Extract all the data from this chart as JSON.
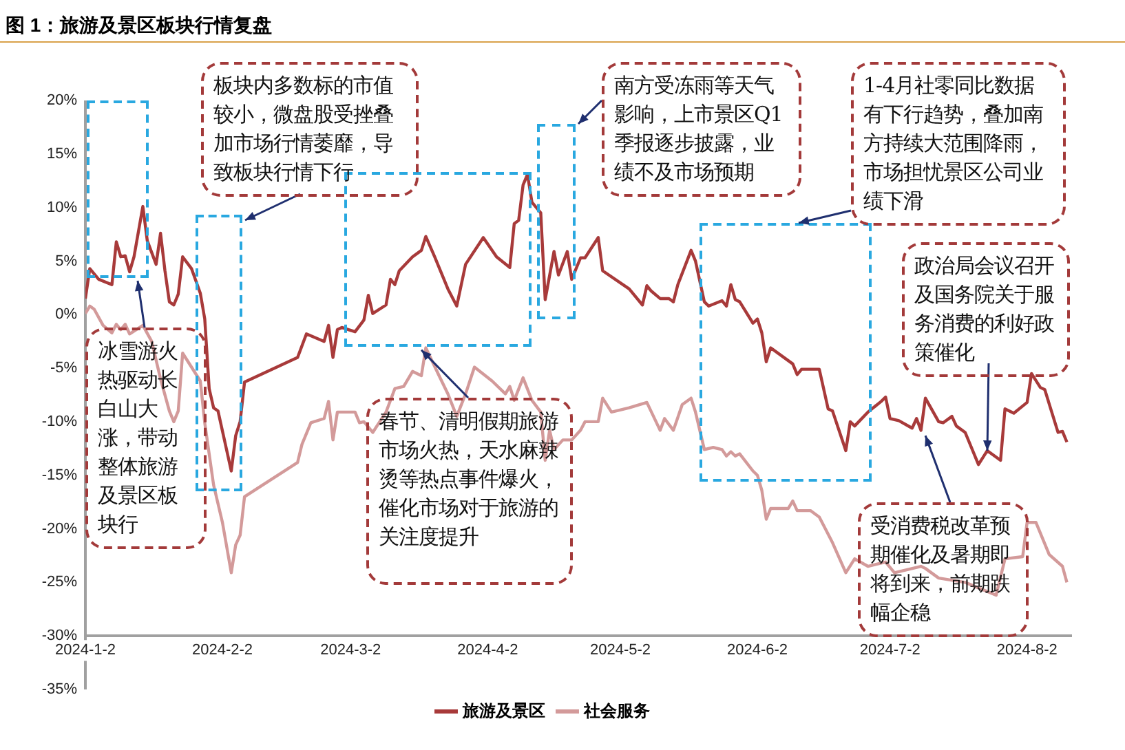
{
  "chart_data": {
    "type": "line",
    "title": "图 1：旅游及景区板块行情复盘",
    "xlim": [
      "2024-01-02",
      "2024-08-12"
    ],
    "xticks": [
      {
        "value": "2024-01-02",
        "label": "2024-1-2"
      },
      {
        "value": "2024-02-02",
        "label": "2024-2-2"
      },
      {
        "value": "2024-03-02",
        "label": "2024-3-2"
      },
      {
        "value": "2024-04-02",
        "label": "2024-4-2"
      },
      {
        "value": "2024-05-02",
        "label": "2024-5-2"
      },
      {
        "value": "2024-06-02",
        "label": "2024-6-2"
      },
      {
        "value": "2024-07-02",
        "label": "2024-7-2"
      },
      {
        "value": "2024-08-02",
        "label": "2024-8-2"
      }
    ],
    "ylim": [
      -35,
      20
    ],
    "yticks": [
      {
        "value": -35,
        "label": "-35%"
      },
      {
        "value": -30,
        "label": "-30%"
      },
      {
        "value": -25,
        "label": "-25%"
      },
      {
        "value": -20,
        "label": "-20%"
      },
      {
        "value": -15,
        "label": "-15%"
      },
      {
        "value": -10,
        "label": "-10%"
      },
      {
        "value": -5,
        "label": "-5%"
      },
      {
        "value": 0,
        "label": "0%"
      },
      {
        "value": 5,
        "label": "5%"
      },
      {
        "value": 10,
        "label": "10%"
      },
      {
        "value": 15,
        "label": "15%"
      },
      {
        "value": 20,
        "label": "20%"
      }
    ],
    "grid": false,
    "legend": "bottom",
    "marker": "none",
    "line_style": "solid",
    "series": [
      {
        "name": "旅游及景区",
        "color": "#a83a3a",
        "x": [
          "2024-01-02",
          "2024-01-03",
          "2024-01-05",
          "2024-01-08",
          "2024-01-09",
          "2024-01-10",
          "2024-01-11",
          "2024-01-12",
          "2024-01-13",
          "2024-01-15",
          "2024-01-16",
          "2024-01-18",
          "2024-01-19",
          "2024-01-20",
          "2024-01-21",
          "2024-01-22",
          "2024-01-23",
          "2024-01-24",
          "2024-01-26",
          "2024-01-28",
          "2024-01-29",
          "2024-01-30",
          "2024-01-31",
          "2024-02-01",
          "2024-02-04",
          "2024-02-05",
          "2024-02-06",
          "2024-02-07",
          "2024-02-19",
          "2024-02-21",
          "2024-02-25",
          "2024-02-26",
          "2024-02-27",
          "2024-02-28",
          "2024-02-29",
          "2024-03-03",
          "2024-03-05",
          "2024-03-06",
          "2024-03-07",
          "2024-03-10",
          "2024-03-11",
          "2024-03-12",
          "2024-03-13",
          "2024-03-16",
          "2024-03-18",
          "2024-03-19",
          "2024-03-21",
          "2024-03-24",
          "2024-03-26",
          "2024-03-28",
          "2024-04-01",
          "2024-04-04",
          "2024-04-07",
          "2024-04-08",
          "2024-04-09",
          "2024-04-10",
          "2024-04-11",
          "2024-04-12",
          "2024-04-14",
          "2024-04-15",
          "2024-04-17",
          "2024-04-18",
          "2024-04-20",
          "2024-04-21",
          "2024-04-23",
          "2024-04-24",
          "2024-04-27",
          "2024-04-28",
          "2024-05-04",
          "2024-05-07",
          "2024-05-08",
          "2024-05-09",
          "2024-05-11",
          "2024-05-13",
          "2024-05-14",
          "2024-05-15",
          "2024-05-18",
          "2024-05-19",
          "2024-05-21",
          "2024-05-22",
          "2024-05-25",
          "2024-05-26",
          "2024-05-27",
          "2024-05-28",
          "2024-05-29",
          "2024-06-01",
          "2024-06-02",
          "2024-06-03",
          "2024-06-04",
          "2024-06-05",
          "2024-06-10",
          "2024-06-11",
          "2024-06-12",
          "2024-06-16",
          "2024-06-18",
          "2024-06-19",
          "2024-06-22",
          "2024-06-23",
          "2024-06-24",
          "2024-06-27",
          "2024-06-30",
          "2024-07-01",
          "2024-07-02",
          "2024-07-04",
          "2024-07-07",
          "2024-07-08",
          "2024-07-09",
          "2024-07-10",
          "2024-07-13",
          "2024-07-14",
          "2024-07-16",
          "2024-07-17",
          "2024-07-19",
          "2024-07-22",
          "2024-07-24",
          "2024-07-27",
          "2024-07-28",
          "2024-07-30",
          "2024-08-02",
          "2024-08-03",
          "2024-08-05",
          "2024-08-06",
          "2024-08-09",
          "2024-08-10",
          "2024-08-11"
        ],
        "values": [
          1.5,
          4.3,
          3.3,
          2.8,
          6.8,
          5.4,
          5.5,
          4.0,
          5.4,
          10.1,
          6.9,
          4.7,
          7.6,
          4.1,
          1.2,
          0.9,
          1.9,
          5.4,
          4.3,
          2.0,
          -0.4,
          -6.9,
          -8.7,
          -9.0,
          -14.6,
          -11.3,
          -10.0,
          -6.3,
          -4.0,
          -1.8,
          -2.5,
          -1.0,
          -4.0,
          -1.4,
          -1.2,
          -1.6,
          -0.5,
          1.8,
          0.1,
          0.9,
          3.3,
          2.8,
          4.1,
          5.4,
          6.0,
          7.3,
          5.4,
          2.4,
          0.8,
          4.7,
          7.2,
          5.4,
          4.4,
          8.5,
          8.8,
          12.1,
          13.1,
          10.5,
          9.5,
          1.4,
          5.9,
          3.7,
          5.9,
          3.3,
          5.3,
          5.3,
          7.2,
          4.1,
          2.4,
          0.9,
          2.7,
          2.2,
          1.5,
          1.5,
          1.2,
          2.8,
          6.0,
          5.0,
          1.2,
          0.8,
          1.3,
          0.8,
          2.8,
          1.4,
          1.2,
          -0.8,
          -0.4,
          -1.7,
          -4.4,
          -3.1,
          -4.6,
          -5.6,
          -5.1,
          -5.1,
          -8.8,
          -9.0,
          -12.7,
          -10.0,
          -10.4,
          -9.1,
          -8.1,
          -7.7,
          -9.7,
          -9.9,
          -10.6,
          -9.7,
          -10.8,
          -7.8,
          -10.0,
          -10.1,
          -9.5,
          -10.4,
          -11.0,
          -14.0,
          -12.7,
          -13.6,
          -8.8,
          -9.2,
          -8.2,
          -5.5,
          -6.8,
          -7.0,
          -11.0,
          -10.9,
          -11.9
        ]
      },
      {
        "name": "社会服务",
        "color": "#d39a9a",
        "x": [
          "2024-01-02",
          "2024-01-03",
          "2024-01-04",
          "2024-01-06",
          "2024-01-08",
          "2024-01-09",
          "2024-01-10",
          "2024-01-11",
          "2024-01-12",
          "2024-01-15",
          "2024-01-17",
          "2024-01-19",
          "2024-01-21",
          "2024-01-22",
          "2024-01-23",
          "2024-01-24",
          "2024-01-26",
          "2024-01-28",
          "2024-01-29",
          "2024-01-31",
          "2024-02-02",
          "2024-02-04",
          "2024-02-05",
          "2024-02-06",
          "2024-02-07",
          "2024-02-19",
          "2024-02-20",
          "2024-02-22",
          "2024-02-25",
          "2024-02-26",
          "2024-02-27",
          "2024-02-28",
          "2024-03-03",
          "2024-03-04",
          "2024-03-05",
          "2024-03-07",
          "2024-03-10",
          "2024-03-12",
          "2024-03-14",
          "2024-03-16",
          "2024-03-18",
          "2024-03-19",
          "2024-03-22",
          "2024-03-24",
          "2024-03-26",
          "2024-03-28",
          "2024-03-30",
          "2024-04-03",
          "2024-04-06",
          "2024-04-07",
          "2024-04-08",
          "2024-04-10",
          "2024-04-12",
          "2024-04-14",
          "2024-04-15",
          "2024-04-16",
          "2024-04-17",
          "2024-04-19",
          "2024-04-21",
          "2024-04-23",
          "2024-04-24",
          "2024-04-27",
          "2024-04-28",
          "2024-04-30",
          "2024-05-04",
          "2024-05-08",
          "2024-05-11",
          "2024-05-12",
          "2024-05-14",
          "2024-05-16",
          "2024-05-18",
          "2024-05-19",
          "2024-05-21",
          "2024-05-23",
          "2024-05-25",
          "2024-05-26",
          "2024-05-27",
          "2024-05-28",
          "2024-05-29",
          "2024-06-01",
          "2024-06-02",
          "2024-06-03",
          "2024-06-04",
          "2024-06-05",
          "2024-06-09",
          "2024-06-10",
          "2024-06-11",
          "2024-06-14",
          "2024-06-16",
          "2024-06-19",
          "2024-06-22",
          "2024-06-24",
          "2024-06-27",
          "2024-06-29",
          "2024-07-01",
          "2024-07-03",
          "2024-07-09",
          "2024-07-10",
          "2024-07-13",
          "2024-07-19",
          "2024-07-26",
          "2024-07-28",
          "2024-08-01",
          "2024-08-02",
          "2024-08-04",
          "2024-08-07",
          "2024-08-10",
          "2024-08-11"
        ],
        "values": [
          0.1,
          0.8,
          0.5,
          -1.0,
          -1.7,
          -0.9,
          -1.4,
          -0.9,
          -1.8,
          -1.0,
          -2.5,
          -6.0,
          -9.0,
          -10.0,
          -9.0,
          -3.6,
          -4.9,
          -6.2,
          -10.1,
          -15.9,
          -19.4,
          -24.1,
          -21.5,
          -20.6,
          -17.0,
          -13.8,
          -12.1,
          -10.1,
          -9.7,
          -8.1,
          -11.7,
          -9.1,
          -9.1,
          -10.1,
          -10.0,
          -11.0,
          -9.1,
          -6.9,
          -6.7,
          -5.3,
          -5.7,
          -3.1,
          -5.7,
          -7.4,
          -9.5,
          -7.4,
          -4.9,
          -6.2,
          -7.4,
          -6.7,
          -8.0,
          -5.9,
          -8.0,
          -9.1,
          -13.6,
          -10.8,
          -12.6,
          -11.7,
          -11.7,
          -10.8,
          -10.0,
          -10.0,
          -7.8,
          -9.1,
          -8.7,
          -8.2,
          -10.8,
          -9.7,
          -10.8,
          -8.4,
          -7.8,
          -9.1,
          -12.6,
          -12.4,
          -12.6,
          -13.2,
          -12.8,
          -13.2,
          -13.0,
          -14.6,
          -15.0,
          -16.4,
          -19.1,
          -18.1,
          -18.1,
          -17.4,
          -18.3,
          -18.3,
          -18.9,
          -21.3,
          -24.1,
          -22.8,
          -23.5,
          -23.3,
          -23.1,
          -24.1,
          -23.5,
          -23.7,
          -24.6,
          -25.0,
          -26.2,
          -22.8,
          -22.6,
          -19.4,
          -19.4,
          -22.4,
          -23.5,
          -25.0
        ]
      }
    ],
    "annotations": [
      "板块内多数标的市值较小，微盘股受挫叠加市场行情萎靡，导致板块行情下行",
      "冰雪游火热驱动长白山大涨，带动整体旅游及景区板块行",
      {
        "text": "春节、清明假期旅游市场火热，天水麻辣烫等热点事件爆火，催化市场对于旅游的关注度提升",
        "x": "2024-03-18",
        "y": -3.3
      },
      "南方受冻雨等天气影响，上市景区Q1季报逐步披露，业绩不及市场预期",
      "1-4月社零同比数据有下行趋势，叠加南方持续大范围降雨，市场担忧景区公司业绩下滑",
      {
        "text": "政治局会议召开及国务院关于服务消费的利好政策催化",
        "x": "2024-07-24",
        "y": -12.7
      },
      {
        "text": "受消费税改革预期催化及暑期即将到来，前期跌幅企稳",
        "x": "2024-07-10",
        "y": -11.3
      }
    ]
  }
}
